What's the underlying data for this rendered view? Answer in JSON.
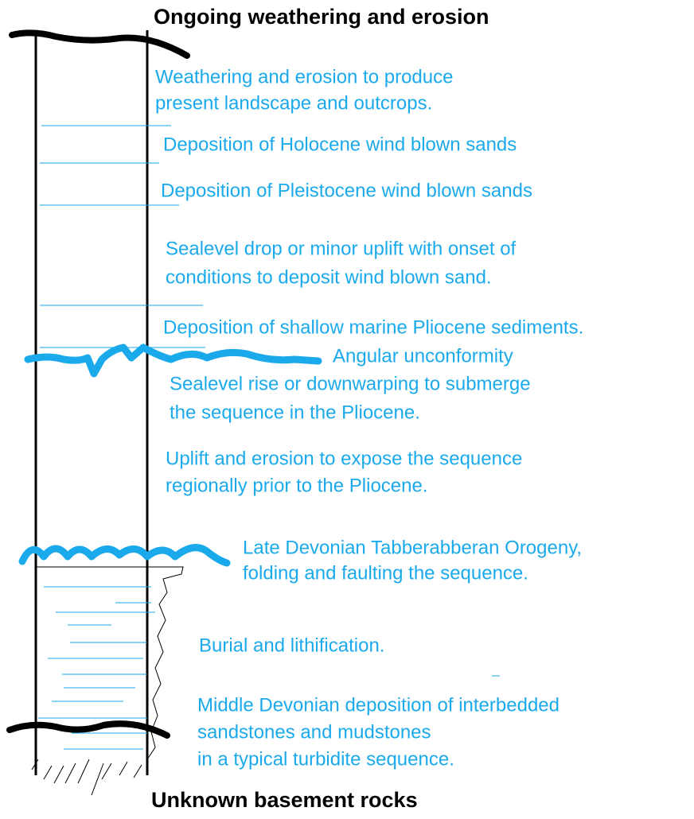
{
  "header": {
    "top": "Ongoing weathering and erosion",
    "bottom": "Unknown basement rocks"
  },
  "events": [
    {
      "lines": [
        "Weathering and erosion to produce",
        "present landscape and outcrops."
      ]
    },
    {
      "lines": [
        "Deposition of Holocene wind blown sands"
      ]
    },
    {
      "lines": [
        "Deposition of Pleistocene wind blown sands"
      ]
    },
    {
      "lines": [
        "Sealevel drop or minor uplift with onset of",
        "conditions to deposit wind blown sand."
      ]
    },
    {
      "lines": [
        "Deposition of shallow marine Pliocene sediments."
      ]
    },
    {
      "lines": [
        "Angular unconformity"
      ]
    },
    {
      "lines": [
        "Sealevel rise or downwarping to submerge",
        "the sequence in the Pliocene."
      ]
    },
    {
      "lines": [
        "Uplift and erosion to expose the sequence",
        "regionally prior to the Pliocene."
      ]
    },
    {
      "lines": [
        "Late Devonian Tabberabberan Orogeny,",
        "folding and faulting the sequence."
      ]
    },
    {
      "lines": [
        "Burial and lithification."
      ]
    },
    {
      "lines": [
        "Middle Devonian deposition of interbedded",
        "sandstones and mudstones",
        "in a typical turbidite sequence."
      ]
    }
  ]
}
